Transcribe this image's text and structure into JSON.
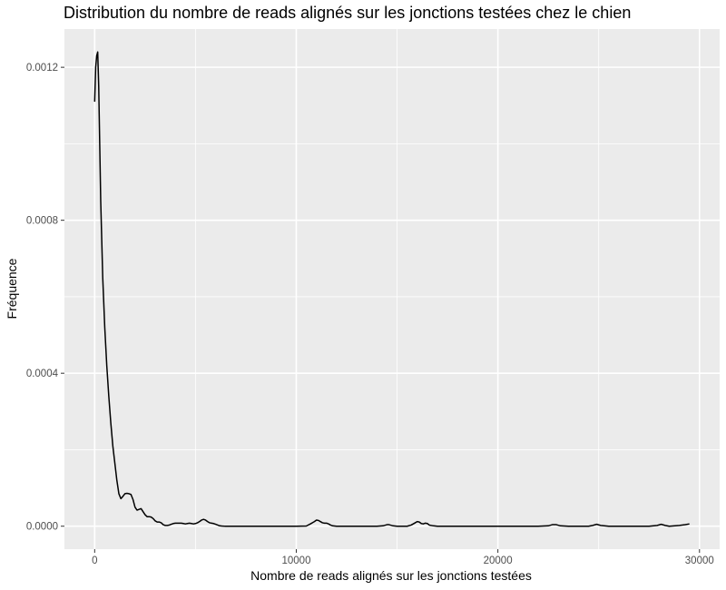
{
  "chart_data": {
    "type": "area",
    "geom": "density-line",
    "title": "Distribution du nombre de reads alignés sur les jonctions testées chez le chien",
    "xlabel": "Nombre de reads alignés sur les jonctions testées",
    "ylabel": "Fréquence",
    "xlim": [
      -1500,
      31000
    ],
    "ylim": [
      -6e-05,
      0.0013
    ],
    "x_ticks": [
      0,
      10000,
      20000,
      30000
    ],
    "x_tick_labels": [
      "0",
      "10000",
      "20000",
      "30000"
    ],
    "y_ticks": [
      0,
      0.0004,
      0.0008,
      0.0012
    ],
    "y_tick_labels": [
      "0.0000",
      "0.0004",
      "0.0008",
      "0.0012"
    ],
    "x_minor": [
      5000,
      15000,
      25000
    ],
    "y_minor": [
      0.0002,
      0.0006,
      0.001
    ],
    "grid": true,
    "legend": "none",
    "panel_color": "#ebebeb",
    "grid_color": "#ffffff",
    "line_color": "#000000",
    "series": [
      {
        "x": [
          0,
          50,
          100,
          150,
          200,
          300,
          400,
          500,
          600,
          700,
          800,
          900,
          1000,
          1100,
          1200,
          1300,
          1400,
          1500,
          1600,
          1700,
          1800,
          1900,
          2000,
          2100,
          2200,
          2300,
          2400,
          2500,
          2600,
          2700,
          2800,
          2900,
          3000,
          3100,
          3200,
          3300,
          3400,
          3500,
          3600,
          3700,
          3800,
          3900,
          4000,
          4100,
          4200,
          4300,
          4400,
          4500,
          4600,
          4700,
          4800,
          4900,
          5000,
          5100,
          5200,
          5300,
          5400,
          5500,
          5600,
          5700,
          5800,
          5900,
          6000,
          6100,
          6200,
          6300,
          6400,
          6500,
          7000,
          8000,
          9000,
          10000,
          10500,
          10700,
          10900,
          11000,
          11100,
          11200,
          11300,
          11400,
          11500,
          11600,
          11700,
          11800,
          12000,
          13000,
          14000,
          14300,
          14500,
          14600,
          14800,
          15000,
          15500,
          15700,
          15900,
          16000,
          16100,
          16200,
          16300,
          16400,
          16500,
          16600,
          16800,
          17000,
          20000,
          22000,
          22500,
          22700,
          22900,
          23100,
          23500,
          24500,
          24700,
          24900,
          25100,
          25500,
          27500,
          27900,
          28100,
          28300,
          28500,
          29000,
          29300,
          29500
        ],
        "y": [
          0.00111,
          0.0012,
          0.00123,
          0.00124,
          0.00115,
          0.00085,
          0.00065,
          0.00052,
          0.00042,
          0.00034,
          0.00027,
          0.00021,
          0.000165,
          0.00012,
          8.5e-05,
          7.2e-05,
          7.8e-05,
          8.5e-05,
          8.6e-05,
          8.5e-05,
          8.3e-05,
          7e-05,
          5e-05,
          4.2e-05,
          4.4e-05,
          4.6e-05,
          3.8e-05,
          3e-05,
          2.5e-05,
          2.5e-05,
          2.4e-05,
          2e-05,
          1.4e-05,
          1.1e-05,
          1.1e-05,
          9e-06,
          4e-06,
          2e-06,
          2e-06,
          3e-06,
          5e-06,
          7e-06,
          8e-06,
          8e-06,
          8e-06,
          8e-06,
          7e-06,
          6e-06,
          7e-06,
          8e-06,
          7e-06,
          6e-06,
          7e-06,
          9e-06,
          1.2e-05,
          1.6e-05,
          1.8e-05,
          1.6e-05,
          1.2e-05,
          9e-06,
          8e-06,
          7e-06,
          5e-06,
          3e-06,
          1e-06,
          5e-07,
          2e-07,
          0,
          0,
          0,
          0,
          0,
          5e-07,
          6e-06,
          1.2e-05,
          1.6e-05,
          1.5e-05,
          1.2e-05,
          9e-06,
          8e-06,
          8e-06,
          6e-06,
          3e-06,
          1e-06,
          0,
          0,
          0,
          1e-06,
          4e-06,
          4e-06,
          1e-06,
          0,
          0,
          3e-06,
          9e-06,
          1.2e-05,
          1.1e-05,
          7e-06,
          6e-06,
          8e-06,
          7e-06,
          3e-06,
          1e-06,
          0,
          0,
          0,
          1e-06,
          4e-06,
          4e-06,
          1e-06,
          0,
          0,
          2e-06,
          5e-06,
          2e-06,
          0,
          0,
          2e-06,
          5e-06,
          2e-06,
          0,
          2e-06,
          4e-06,
          6e-06
        ]
      }
    ]
  }
}
